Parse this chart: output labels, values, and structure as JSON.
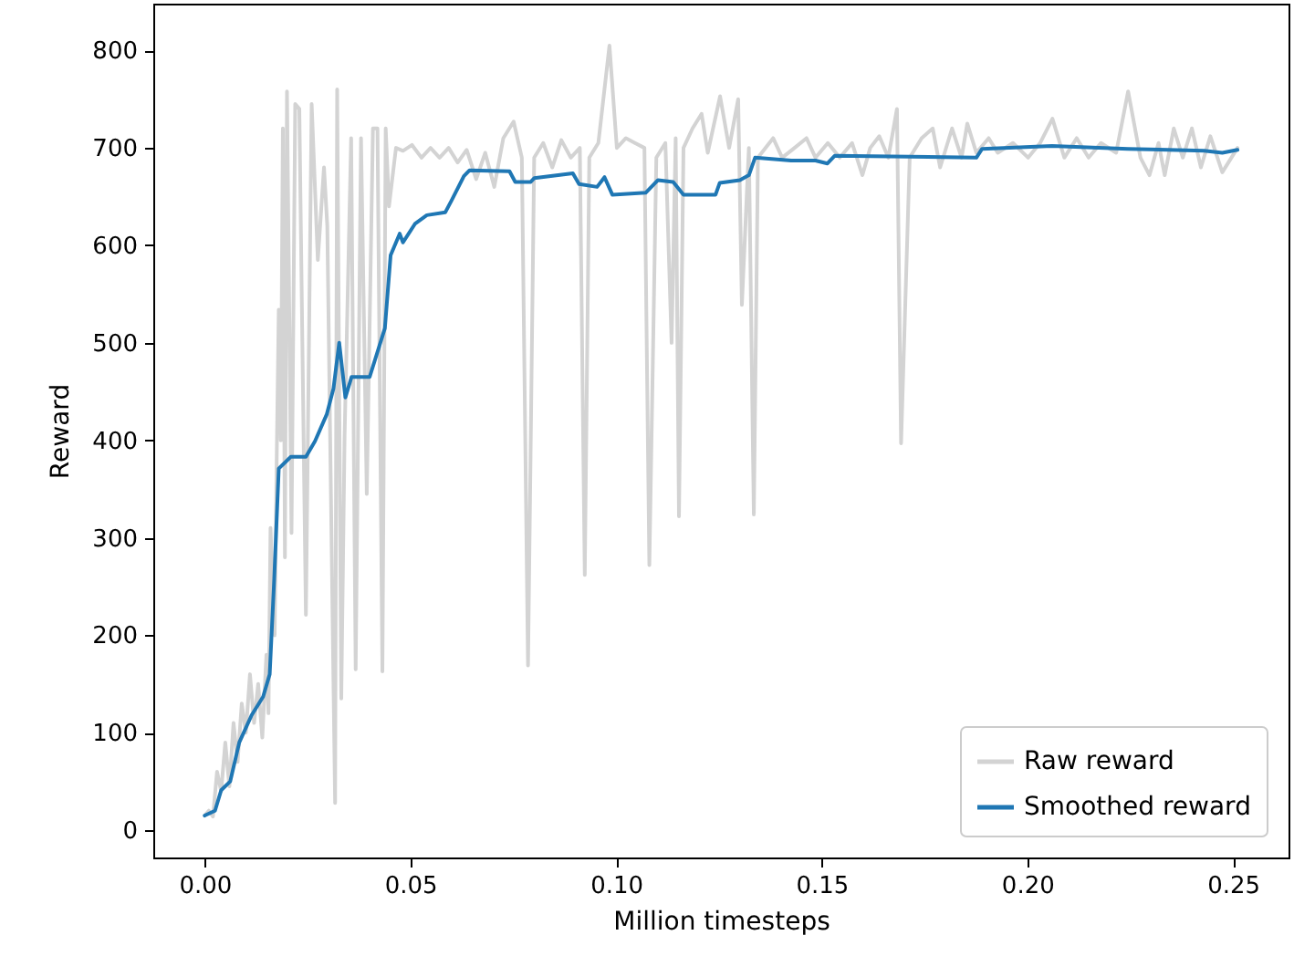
{
  "chart_data": {
    "type": "line",
    "xlabel": "Million timesteps",
    "ylabel": "Reward",
    "xlim": [
      -0.0125,
      0.2635
    ],
    "ylim": [
      -28,
      848
    ],
    "xticks": [
      {
        "value": 0,
        "label": "0.00"
      },
      {
        "value": 0.05,
        "label": "0.05"
      },
      {
        "value": 0.1,
        "label": "0.10"
      },
      {
        "value": 0.15,
        "label": "0.15"
      },
      {
        "value": 0.2,
        "label": "0.20"
      },
      {
        "value": 0.25,
        "label": "0.25"
      }
    ],
    "yticks": [
      0,
      100,
      200,
      300,
      400,
      500,
      600,
      700,
      800
    ],
    "grid": false,
    "legend": "bottom right",
    "line_style": "solid",
    "marker": "none",
    "series": [
      {
        "name": "Raw reward",
        "color": "#d3d3d3",
        "x": [
          0,
          0.001,
          0.002,
          0.003,
          0.004,
          0.005,
          0.006,
          0.007,
          0.008,
          0.009,
          0.01,
          0.011,
          0.012,
          0.013,
          0.014,
          0.015,
          0.0155,
          0.016,
          0.017,
          0.0175,
          0.018,
          0.0185,
          0.019,
          0.0195,
          0.02,
          0.0211,
          0.022,
          0.023,
          0.0246,
          0.026,
          0.0275,
          0.029,
          0.0298,
          0.0317,
          0.0322,
          0.0332,
          0.034,
          0.0356,
          0.0367,
          0.038,
          0.0394,
          0.0409,
          0.042,
          0.0432,
          0.044,
          0.0448,
          0.0465,
          0.0482,
          0.0504,
          0.0527,
          0.0549,
          0.0571,
          0.0593,
          0.0615,
          0.0637,
          0.066,
          0.0682,
          0.0704,
          0.0726,
          0.0751,
          0.0771,
          0.0786,
          0.0801,
          0.0823,
          0.0845,
          0.0867,
          0.089,
          0.0912,
          0.0924,
          0.0935,
          0.0957,
          0.0984,
          0.1002,
          0.1024,
          0.1046,
          0.1069,
          0.1081,
          0.1098,
          0.112,
          0.1135,
          0.1145,
          0.1153,
          0.1164,
          0.1186,
          0.1208,
          0.1223,
          0.1253,
          0.1275,
          0.1297,
          0.1306,
          0.1323,
          0.1335,
          0.1345,
          0.1382,
          0.1404,
          0.1434,
          0.1463,
          0.1485,
          0.1515,
          0.1544,
          0.1574,
          0.1599,
          0.1618,
          0.164,
          0.1662,
          0.1683,
          0.1693,
          0.1714,
          0.1743,
          0.177,
          0.1788,
          0.1817,
          0.184,
          0.1854,
          0.1876,
          0.1906,
          0.1928,
          0.1965,
          0.2002,
          0.2031,
          0.2061,
          0.209,
          0.212,
          0.2149,
          0.2179,
          0.2216,
          0.2245,
          0.2275,
          0.2297,
          0.2319,
          0.2334,
          0.2356,
          0.2378,
          0.24,
          0.2422,
          0.2445,
          0.2474,
          0.2511
        ],
        "values": [
          15,
          20,
          14,
          60,
          40,
          90,
          45,
          110,
          70,
          130,
          100,
          160,
          110,
          150,
          95,
          180,
          120,
          310,
          200,
          380,
          534,
          400,
          720,
          280,
          758,
          305,
          745,
          740,
          221,
          745,
          585,
          680,
          620,
          28,
          760,
          135,
          403,
          710,
          165,
          710,
          345,
          720,
          720,
          163,
          720,
          640,
          700,
          697,
          703,
          690,
          700,
          690,
          700,
          685,
          698,
          668,
          695,
          660,
          710,
          727,
          690,
          169,
          690,
          705,
          680,
          708,
          690,
          700,
          262,
          690,
          705,
          805,
          700,
          710,
          705,
          700,
          272,
          690,
          705,
          500,
          710,
          322,
          700,
          720,
          735,
          695,
          753,
          700,
          750,
          539,
          700,
          324,
          690,
          710,
          690,
          700,
          710,
          690,
          705,
          690,
          705,
          672,
          700,
          712,
          690,
          740,
          397,
          690,
          710,
          720,
          680,
          720,
          690,
          725,
          695,
          710,
          695,
          705,
          690,
          705,
          730,
          690,
          710,
          690,
          705,
          695,
          758,
          690,
          672,
          705,
          672,
          720,
          690,
          720,
          680,
          712,
          675,
          700
        ]
      },
      {
        "name": "Smoothed reward",
        "color": "#1f77b4",
        "x": [
          0,
          0.0025,
          0.004,
          0.0062,
          0.0084,
          0.0114,
          0.0142,
          0.0158,
          0.0169,
          0.018,
          0.0209,
          0.0246,
          0.0268,
          0.0297,
          0.0313,
          0.0327,
          0.0342,
          0.0357,
          0.0401,
          0.0438,
          0.0452,
          0.0474,
          0.0482,
          0.0511,
          0.054,
          0.0585,
          0.06,
          0.063,
          0.0644,
          0.0741,
          0.0755,
          0.0792,
          0.0801,
          0.0895,
          0.091,
          0.0954,
          0.0972,
          0.0991,
          0.1072,
          0.1102,
          0.1139,
          0.1164,
          0.1242,
          0.1252,
          0.1301,
          0.1323,
          0.1338,
          0.1426,
          0.1485,
          0.1514,
          0.1532,
          0.1876,
          0.189,
          0.206,
          0.2245,
          0.243,
          0.2474,
          0.2511
        ],
        "values": [
          15,
          20,
          41,
          50,
          90,
          118,
          137,
          160,
          258,
          371,
          383,
          383,
          399,
          427,
          453,
          500,
          444,
          465,
          465,
          515,
          590,
          612,
          603,
          622,
          631,
          634,
          646,
          671,
          677,
          676,
          665,
          665,
          669,
          674,
          663,
          660,
          670,
          652,
          654,
          667,
          665,
          652,
          652,
          664,
          667,
          672,
          690,
          687,
          687,
          684,
          692,
          690,
          699,
          702,
          699,
          697,
          695,
          698
        ]
      }
    ]
  }
}
